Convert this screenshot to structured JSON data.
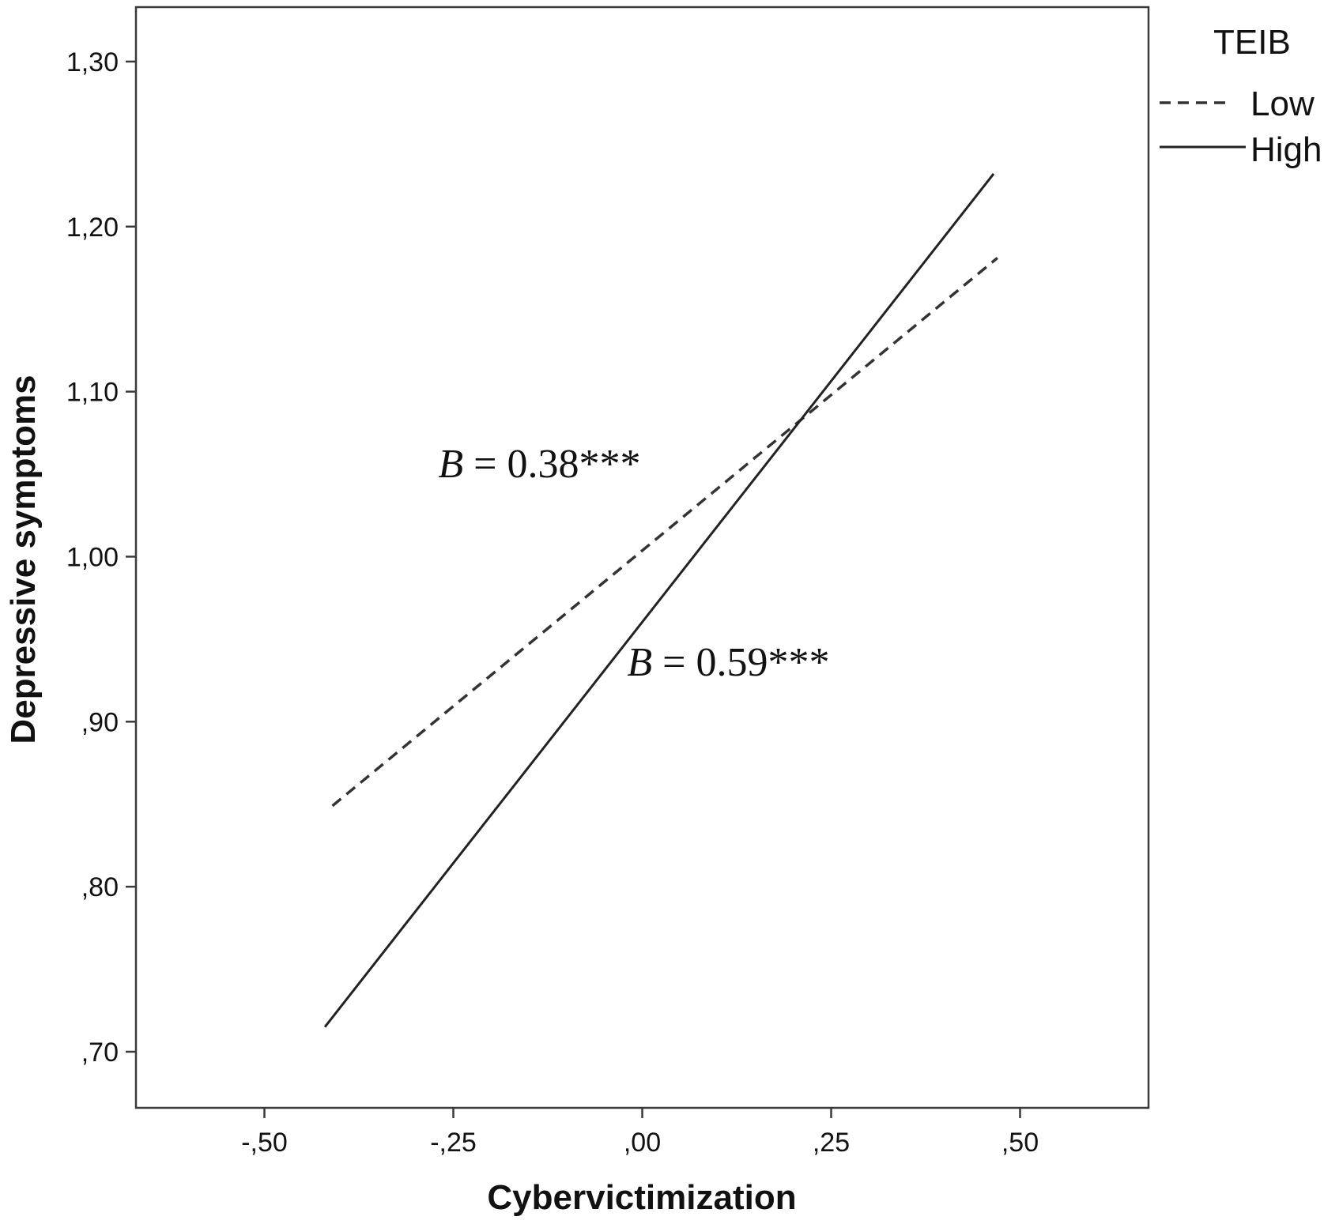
{
  "chart_data": {
    "type": "line",
    "xlabel": "Cybervictimization",
    "ylabel": "Depressive symptoms",
    "xlim": [
      -0.67,
      0.67
    ],
    "ylim": [
      0.666,
      1.333
    ],
    "x_ticks": [
      -0.5,
      -0.25,
      0.0,
      0.25,
      0.5
    ],
    "x_tick_labels": [
      "-,50",
      "-,25",
      ",00",
      ",25",
      ",50"
    ],
    "y_ticks": [
      0.7,
      0.8,
      0.9,
      1.0,
      1.1,
      1.2,
      1.3
    ],
    "y_tick_labels": [
      ",70",
      ",80",
      ",90",
      "1,00",
      "1,10",
      "1,20",
      "1,30"
    ],
    "grid": false,
    "legend": {
      "title": "TEIB",
      "position": "outside-top-right",
      "entries": [
        "Low",
        "High"
      ]
    },
    "series": [
      {
        "name": "Low",
        "style": "dashed",
        "color": "#333333",
        "x": [
          -0.41,
          0.47
        ],
        "y": [
          0.849,
          1.181
        ]
      },
      {
        "name": "High",
        "style": "solid",
        "color": "#222222",
        "x": [
          -0.42,
          0.465
        ],
        "y": [
          0.715,
          1.232
        ]
      }
    ],
    "annotations": [
      {
        "id": "low",
        "prefix": "B",
        "text": " = 0.38***",
        "x": -0.27,
        "y": 1.048
      },
      {
        "id": "high",
        "prefix": "B",
        "text": " = 0.59***",
        "x": -0.02,
        "y": 0.928
      }
    ]
  }
}
